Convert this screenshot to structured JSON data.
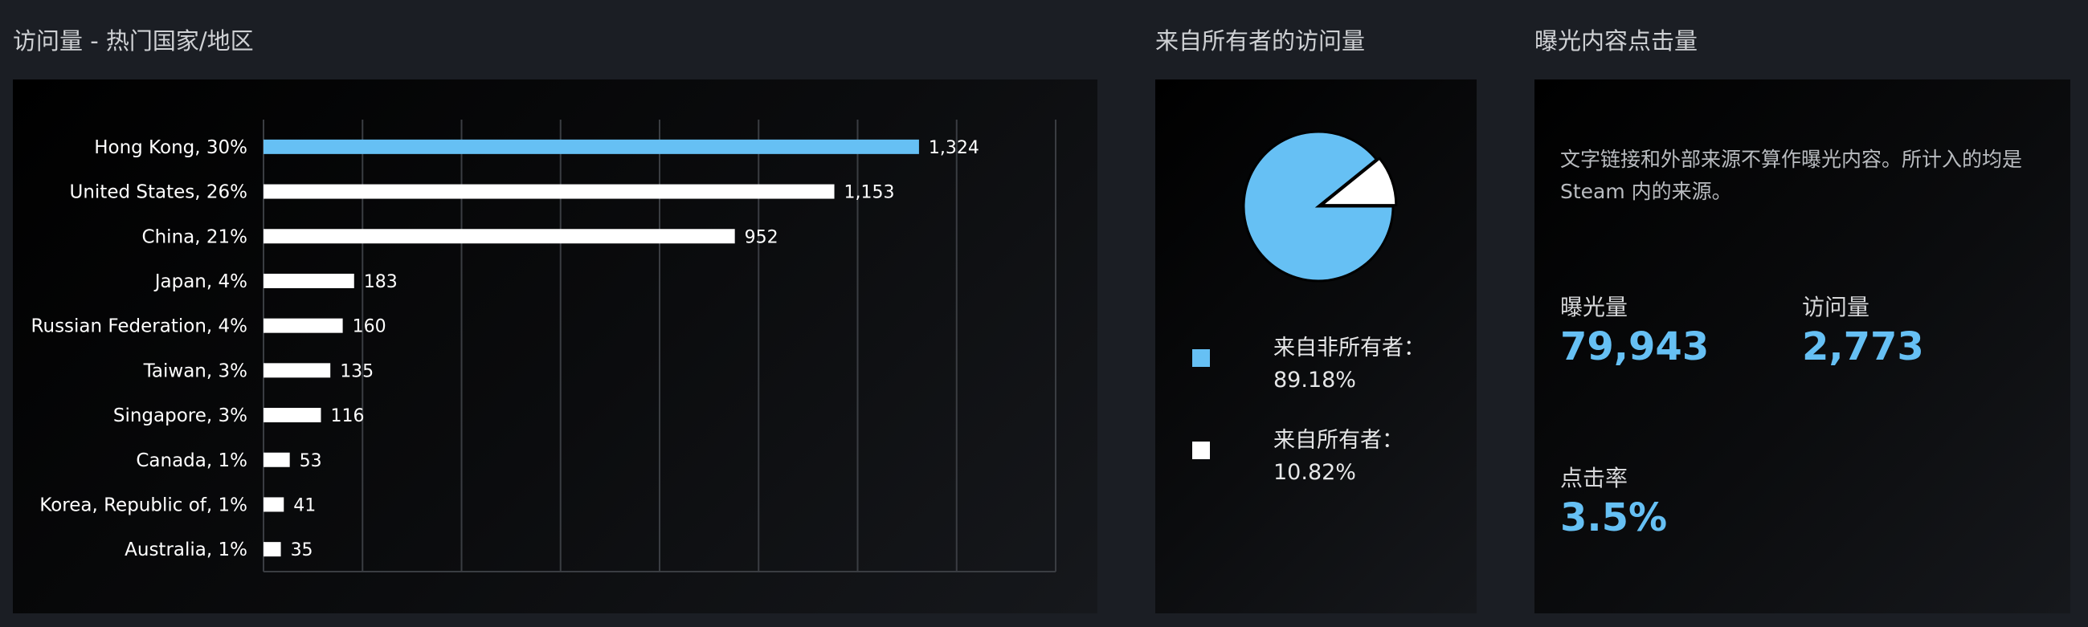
{
  "sections": {
    "countries_title": "访问量 - 热门国家/地区",
    "owners_title": "来自所有者的访问量",
    "impressions_title": "曝光内容点击量"
  },
  "colors": {
    "accent": "#66c0f4",
    "bar_default": "#ffffff",
    "background": "#1b1e24"
  },
  "chart_data": [
    {
      "type": "bar",
      "orientation": "horizontal",
      "title": "访问量 - 热门国家/地区",
      "categories": [
        "Hong Kong, 30%",
        "United States, 26%",
        "China, 21%",
        "Japan, 4%",
        "Russian Federation, 4%",
        "Taiwan, 3%",
        "Singapore, 3%",
        "Canada, 1%",
        "Korea, Republic of, 1%",
        "Australia, 1%"
      ],
      "values": [
        1324,
        1153,
        952,
        183,
        160,
        135,
        116,
        53,
        41,
        35
      ],
      "value_labels": [
        "1,324",
        "1,153",
        "952",
        "183",
        "160",
        "135",
        "116",
        "53",
        "41",
        "35"
      ],
      "highlight_index": 0,
      "xlim": [
        0,
        1600
      ],
      "grid": true,
      "xlabel": "",
      "ylabel": ""
    },
    {
      "type": "pie",
      "title": "来自所有者的访问量",
      "labels": [
        "来自非所有者：",
        "来自所有者："
      ],
      "values": [
        89.18,
        10.82
      ],
      "value_labels": [
        "89.18%",
        "10.82%"
      ],
      "colors": [
        "#66c0f4",
        "#ffffff"
      ],
      "legend_position": "bottom"
    }
  ],
  "impressions": {
    "note": "文字链接和外部来源不算作曝光内容。所计入的均是 Steam 内的来源。",
    "stats": [
      {
        "label": "曝光量",
        "value": "79,943"
      },
      {
        "label": "访问量",
        "value": "2,773"
      },
      {
        "label": "点击率",
        "value": "3.5%"
      }
    ]
  }
}
